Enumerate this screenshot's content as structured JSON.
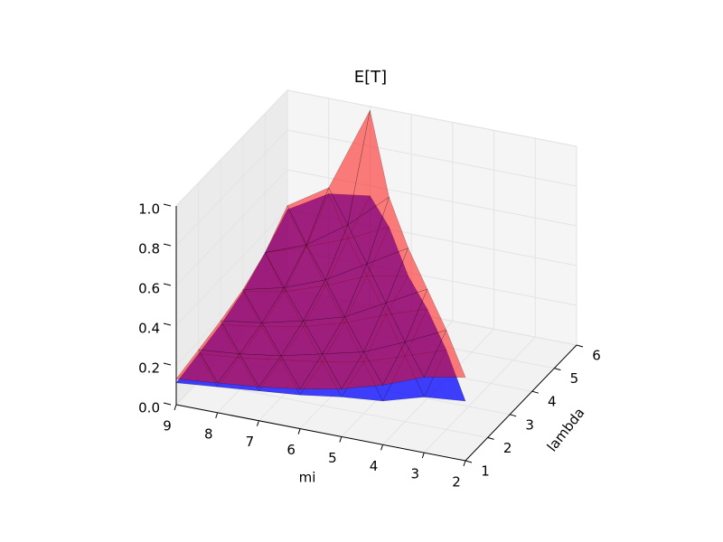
{
  "chart_data": {
    "type": "trisurf3d",
    "title": "E[T]",
    "x_label": "mi",
    "y_label": "lambda",
    "x": [
      2,
      3,
      3,
      4,
      4,
      4,
      5,
      5,
      5,
      5,
      6,
      6,
      6,
      6,
      6,
      7,
      7,
      7,
      7,
      7,
      7,
      8,
      8,
      8,
      8,
      8,
      8,
      9,
      9,
      9,
      9,
      9,
      9
    ],
    "y": [
      1,
      1,
      2,
      1,
      2,
      3,
      1,
      2,
      3,
      4,
      1,
      2,
      3,
      4,
      5,
      1,
      2,
      3,
      4,
      5,
      6,
      1,
      2,
      3,
      4,
      5,
      6,
      1,
      2,
      3,
      4,
      5,
      6
    ],
    "series": [
      {
        "color": "#ff0000",
        "values": [
          0.42,
          0.38,
          0.5,
          0.3,
          0.4,
          0.55,
          0.24,
          0.31,
          0.44,
          0.6,
          0.2,
          0.26,
          0.33,
          0.48,
          0.7,
          0.17,
          0.21,
          0.27,
          0.36,
          0.52,
          0.98,
          0.15,
          0.18,
          0.22,
          0.28,
          0.38,
          0.55,
          0.13,
          0.16,
          0.19,
          0.23,
          0.3,
          0.42
        ]
      },
      {
        "color": "#0000ff",
        "values": [
          0.3,
          0.28,
          0.4,
          0.22,
          0.33,
          0.45,
          0.2,
          0.26,
          0.38,
          0.46,
          0.17,
          0.22,
          0.3,
          0.42,
          0.55,
          0.15,
          0.19,
          0.24,
          0.33,
          0.45,
          0.55,
          0.13,
          0.16,
          0.2,
          0.26,
          0.37,
          0.52,
          0.11,
          0.14,
          0.17,
          0.22,
          0.3,
          0.4
        ]
      }
    ],
    "xlim": [
      9,
      2
    ],
    "xticks": [
      9,
      8,
      7,
      6,
      5,
      4,
      3,
      2
    ],
    "ylim": [
      1,
      6
    ],
    "yticks": [
      1,
      2,
      3,
      4,
      5,
      6
    ],
    "zlim": [
      0,
      1
    ],
    "zticks": [
      {
        "value": 0,
        "label": "0.0"
      },
      0.2,
      0.4,
      0.6,
      0.8,
      {
        "value": 1,
        "label": "1.0"
      }
    ],
    "grid": true
  }
}
